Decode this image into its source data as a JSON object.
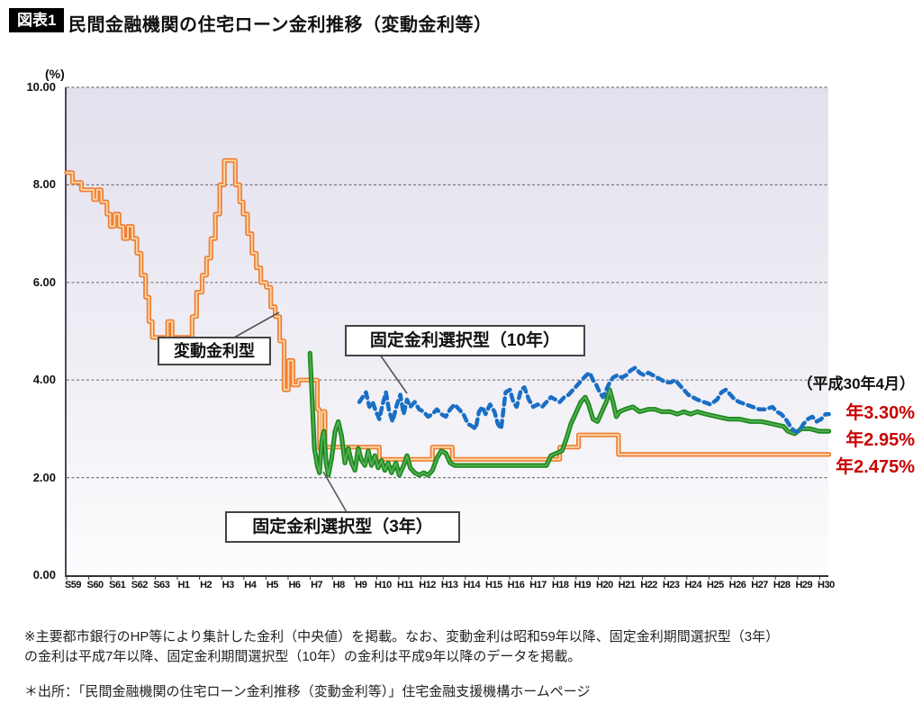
{
  "header": {
    "badge": "図表1",
    "title": "民間金融機関の住宅ローン金利推移（変動金利等）"
  },
  "chart_data": {
    "type": "line",
    "title": "民間金融機関の住宅ローン金利推移（変動金利等）",
    "y_unit_label": "(%)",
    "ylim": [
      0,
      10
    ],
    "ytick_values": [
      10,
      8,
      6,
      4,
      2,
      0
    ],
    "ytick_labels": [
      "10.00",
      "8.00",
      "6.00",
      "4.00",
      "2.00",
      "0.00"
    ],
    "grid": "dashed-horizontal",
    "x_categories": [
      "S59",
      "S60",
      "S61",
      "S62",
      "S63",
      "H1",
      "H2",
      "H3",
      "H4",
      "H5",
      "H6",
      "H7",
      "H8",
      "H9",
      "H10",
      "H11",
      "H12",
      "H13",
      "H14",
      "H15",
      "H16",
      "H17",
      "H18",
      "H19",
      "H20",
      "H21",
      "H22",
      "H23",
      "H24",
      "H25",
      "H26",
      "H27",
      "H28",
      "H29",
      "H30"
    ],
    "series": [
      {
        "name": "変動金利型",
        "color": "#ee7f35",
        "core_color": "#fbd9a8",
        "line_style": "solid-cased",
        "render": "step",
        "points": [
          [
            -0.37,
            8.25
          ],
          [
            -0.1,
            8.05
          ],
          [
            0.15,
            8.05
          ],
          [
            0.3,
            7.9
          ],
          [
            0.7,
            7.9
          ],
          [
            0.85,
            7.7
          ],
          [
            1.0,
            7.9
          ],
          [
            1.2,
            7.65
          ],
          [
            1.45,
            7.4
          ],
          [
            1.6,
            7.15
          ],
          [
            1.8,
            7.4
          ],
          [
            2.0,
            7.15
          ],
          [
            2.2,
            6.9
          ],
          [
            2.4,
            7.15
          ],
          [
            2.6,
            6.9
          ],
          [
            2.8,
            6.6
          ],
          [
            3.0,
            6.15
          ],
          [
            3.2,
            5.7
          ],
          [
            3.35,
            5.2
          ],
          [
            3.5,
            4.875
          ],
          [
            4.05,
            4.875
          ],
          [
            4.2,
            5.2
          ],
          [
            4.4,
            4.875
          ],
          [
            5.1,
            4.875
          ],
          [
            5.3,
            5.3
          ],
          [
            5.5,
            5.8
          ],
          [
            5.75,
            6.15
          ],
          [
            5.95,
            6.5
          ],
          [
            6.15,
            6.9
          ],
          [
            6.35,
            7.4
          ],
          [
            6.55,
            8.0
          ],
          [
            6.75,
            8.5
          ],
          [
            7.1,
            8.5
          ],
          [
            7.25,
            8.0
          ],
          [
            7.45,
            7.65
          ],
          [
            7.6,
            7.4
          ],
          [
            7.8,
            7.0
          ],
          [
            8.0,
            6.6
          ],
          [
            8.2,
            6.3
          ],
          [
            8.4,
            6.0
          ],
          [
            8.65,
            5.9
          ],
          [
            8.85,
            5.5
          ],
          [
            9.05,
            5.3
          ],
          [
            9.25,
            4.8
          ],
          [
            9.45,
            3.8
          ],
          [
            9.65,
            4.4
          ],
          [
            9.85,
            3.9
          ],
          [
            10.1,
            4.0
          ],
          [
            10.75,
            4.0
          ],
          [
            10.95,
            3.4
          ],
          [
            11.05,
            2.6
          ],
          [
            11.15,
            3.35
          ],
          [
            11.3,
            2.625
          ],
          [
            13.55,
            2.625
          ],
          [
            13.75,
            2.375
          ],
          [
            15.95,
            2.375
          ],
          [
            16.15,
            2.625
          ],
          [
            16.85,
            2.625
          ],
          [
            17.05,
            2.375
          ],
          [
            21.7,
            2.375
          ],
          [
            21.9,
            2.625
          ],
          [
            22.55,
            2.625
          ],
          [
            22.75,
            2.875
          ],
          [
            24.3,
            2.875
          ],
          [
            24.55,
            2.475
          ],
          [
            34.05,
            2.475
          ]
        ],
        "end_value_pct": 2.475
      },
      {
        "name": "固定金利選択型（3年）",
        "color": "#1b8a1b",
        "core_color": "#57ae57",
        "line_style": "solid-cased",
        "render": "linear",
        "points": [
          [
            10.62,
            4.55
          ],
          [
            10.72,
            3.6
          ],
          [
            10.82,
            2.6
          ],
          [
            10.95,
            2.25
          ],
          [
            11.05,
            2.1
          ],
          [
            11.15,
            2.75
          ],
          [
            11.25,
            2.95
          ],
          [
            11.35,
            2.3
          ],
          [
            11.45,
            2.05
          ],
          [
            11.6,
            2.4
          ],
          [
            11.75,
            2.95
          ],
          [
            11.9,
            3.15
          ],
          [
            12.05,
            2.85
          ],
          [
            12.2,
            2.3
          ],
          [
            12.35,
            2.6
          ],
          [
            12.5,
            2.3
          ],
          [
            12.65,
            2.15
          ],
          [
            12.8,
            2.6
          ],
          [
            12.95,
            2.35
          ],
          [
            13.1,
            2.25
          ],
          [
            13.25,
            2.55
          ],
          [
            13.4,
            2.25
          ],
          [
            13.55,
            2.45
          ],
          [
            13.7,
            2.2
          ],
          [
            13.85,
            2.35
          ],
          [
            14.0,
            2.15
          ],
          [
            14.15,
            2.3
          ],
          [
            14.3,
            2.1
          ],
          [
            14.5,
            2.3
          ],
          [
            14.65,
            2.05
          ],
          [
            14.85,
            2.25
          ],
          [
            15.0,
            2.45
          ],
          [
            15.15,
            2.2
          ],
          [
            15.35,
            2.1
          ],
          [
            15.55,
            2.05
          ],
          [
            15.75,
            2.1
          ],
          [
            15.95,
            2.05
          ],
          [
            16.15,
            2.15
          ],
          [
            16.35,
            2.4
          ],
          [
            16.55,
            2.55
          ],
          [
            16.75,
            2.5
          ],
          [
            16.95,
            2.3
          ],
          [
            17.15,
            2.25
          ],
          [
            18.0,
            2.25
          ],
          [
            21.3,
            2.25
          ],
          [
            21.5,
            2.45
          ],
          [
            21.75,
            2.5
          ],
          [
            22.0,
            2.55
          ],
          [
            22.2,
            2.8
          ],
          [
            22.4,
            3.1
          ],
          [
            22.6,
            3.3
          ],
          [
            22.85,
            3.55
          ],
          [
            23.05,
            3.65
          ],
          [
            23.2,
            3.5
          ],
          [
            23.4,
            3.2
          ],
          [
            23.6,
            3.15
          ],
          [
            23.8,
            3.35
          ],
          [
            24.0,
            3.55
          ],
          [
            24.15,
            3.8
          ],
          [
            24.3,
            3.55
          ],
          [
            24.45,
            3.25
          ],
          [
            24.6,
            3.35
          ],
          [
            24.85,
            3.4
          ],
          [
            25.2,
            3.45
          ],
          [
            25.5,
            3.35
          ],
          [
            25.9,
            3.4
          ],
          [
            26.2,
            3.4
          ],
          [
            26.5,
            3.35
          ],
          [
            26.9,
            3.35
          ],
          [
            27.2,
            3.3
          ],
          [
            27.5,
            3.35
          ],
          [
            27.8,
            3.3
          ],
          [
            28.1,
            3.35
          ],
          [
            28.5,
            3.3
          ],
          [
            29.0,
            3.25
          ],
          [
            29.5,
            3.2
          ],
          [
            30.0,
            3.2
          ],
          [
            30.5,
            3.15
          ],
          [
            31.0,
            3.15
          ],
          [
            31.5,
            3.1
          ],
          [
            32.0,
            3.05
          ],
          [
            32.2,
            2.95
          ],
          [
            32.5,
            2.9
          ],
          [
            32.8,
            3.0
          ],
          [
            33.2,
            3.0
          ],
          [
            33.6,
            2.95
          ],
          [
            34.05,
            2.95
          ]
        ],
        "end_value_pct": 2.95
      },
      {
        "name": "固定金利選択型（10年）",
        "color": "#1a6fc4",
        "line_style": "dashed",
        "render": "linear",
        "points": [
          [
            12.85,
            3.55
          ],
          [
            13.0,
            3.65
          ],
          [
            13.15,
            3.75
          ],
          [
            13.3,
            3.45
          ],
          [
            13.45,
            3.55
          ],
          [
            13.6,
            3.35
          ],
          [
            13.75,
            3.2
          ],
          [
            13.9,
            3.5
          ],
          [
            14.05,
            3.75
          ],
          [
            14.2,
            3.35
          ],
          [
            14.35,
            3.15
          ],
          [
            14.55,
            3.5
          ],
          [
            14.7,
            3.7
          ],
          [
            14.85,
            3.3
          ],
          [
            15.0,
            3.6
          ],
          [
            15.15,
            3.45
          ],
          [
            15.35,
            3.55
          ],
          [
            15.55,
            3.4
          ],
          [
            15.75,
            3.35
          ],
          [
            15.95,
            3.25
          ],
          [
            16.15,
            3.3
          ],
          [
            16.35,
            3.4
          ],
          [
            16.55,
            3.3
          ],
          [
            16.75,
            3.25
          ],
          [
            16.95,
            3.4
          ],
          [
            17.15,
            3.5
          ],
          [
            17.35,
            3.4
          ],
          [
            17.55,
            3.3
          ],
          [
            17.75,
            3.1
          ],
          [
            17.95,
            3.05
          ],
          [
            18.1,
            3.0
          ],
          [
            18.25,
            3.35
          ],
          [
            18.4,
            3.45
          ],
          [
            18.55,
            3.3
          ],
          [
            18.75,
            3.5
          ],
          [
            18.95,
            3.35
          ],
          [
            19.1,
            3.1
          ],
          [
            19.25,
            3.0
          ],
          [
            19.45,
            3.75
          ],
          [
            19.65,
            3.8
          ],
          [
            19.8,
            3.55
          ],
          [
            19.95,
            3.45
          ],
          [
            20.15,
            3.8
          ],
          [
            20.3,
            3.85
          ],
          [
            20.5,
            3.6
          ],
          [
            20.7,
            3.45
          ],
          [
            20.9,
            3.5
          ],
          [
            21.1,
            3.45
          ],
          [
            21.3,
            3.55
          ],
          [
            21.5,
            3.65
          ],
          [
            21.7,
            3.6
          ],
          [
            21.9,
            3.55
          ],
          [
            22.1,
            3.65
          ],
          [
            22.3,
            3.7
          ],
          [
            22.5,
            3.8
          ],
          [
            22.7,
            3.9
          ],
          [
            22.9,
            4.0
          ],
          [
            23.1,
            4.1
          ],
          [
            23.25,
            4.15
          ],
          [
            23.4,
            4.0
          ],
          [
            23.55,
            3.9
          ],
          [
            23.7,
            3.75
          ],
          [
            23.85,
            3.65
          ],
          [
            24.0,
            3.8
          ],
          [
            24.15,
            3.95
          ],
          [
            24.3,
            4.05
          ],
          [
            24.5,
            4.1
          ],
          [
            24.7,
            4.05
          ],
          [
            24.9,
            4.1
          ],
          [
            25.1,
            4.2
          ],
          [
            25.3,
            4.25
          ],
          [
            25.5,
            4.15
          ],
          [
            25.7,
            4.1
          ],
          [
            25.9,
            4.15
          ],
          [
            26.1,
            4.1
          ],
          [
            26.3,
            4.05
          ],
          [
            26.5,
            4.0
          ],
          [
            26.7,
            3.95
          ],
          [
            26.9,
            3.95
          ],
          [
            27.1,
            4.0
          ],
          [
            27.3,
            3.9
          ],
          [
            27.5,
            3.8
          ],
          [
            27.7,
            3.7
          ],
          [
            27.9,
            3.65
          ],
          [
            28.1,
            3.6
          ],
          [
            28.4,
            3.55
          ],
          [
            28.7,
            3.5
          ],
          [
            29.0,
            3.6
          ],
          [
            29.2,
            3.75
          ],
          [
            29.4,
            3.8
          ],
          [
            29.6,
            3.7
          ],
          [
            29.8,
            3.6
          ],
          [
            30.0,
            3.55
          ],
          [
            30.3,
            3.5
          ],
          [
            30.6,
            3.45
          ],
          [
            30.9,
            3.4
          ],
          [
            31.2,
            3.4
          ],
          [
            31.5,
            3.45
          ],
          [
            31.7,
            3.35
          ],
          [
            31.9,
            3.3
          ],
          [
            32.1,
            3.2
          ],
          [
            32.3,
            3.05
          ],
          [
            32.5,
            2.95
          ],
          [
            32.7,
            2.95
          ],
          [
            32.9,
            3.1
          ],
          [
            33.1,
            3.2
          ],
          [
            33.3,
            3.25
          ],
          [
            33.5,
            3.15
          ],
          [
            33.7,
            3.2
          ],
          [
            33.9,
            3.3
          ],
          [
            34.05,
            3.3
          ]
        ],
        "end_value_pct": 3.3
      }
    ],
    "annotations": {
      "date_note": "（平成30年4月）",
      "end_values": [
        {
          "text": "年3.30%",
          "series": "固定金利選択型（10年）",
          "color": "#c80000"
        },
        {
          "text": "年2.95%",
          "series": "固定金利選択型（3年）",
          "color": "#c80000"
        },
        {
          "text": "年2.475%",
          "series": "変動金利型",
          "color": "#c80000"
        }
      ]
    },
    "theme": {
      "plot_bg_top": "#e3e0ed",
      "plot_bg_bottom": "#fdfdfe",
      "grid_color": "#777777",
      "axis_color": "#333333",
      "annotation_red": "#c80000"
    }
  },
  "footnotes": {
    "note_line1": "※主要都市銀行のHP等により集計した金利（中央値）を掲載。なお、変動金利は昭和59年以降、固定金利期間選択型（3年）",
    "note_line2": "の金利は平成7年以降、固定金利期間選択型（10年）の金利は平成9年以降のデータを掲載。",
    "source": "＊出所：「民間金融機関の住宅ローン金利推移（変動金利等）」住宅金融支援機構ホームページ"
  }
}
